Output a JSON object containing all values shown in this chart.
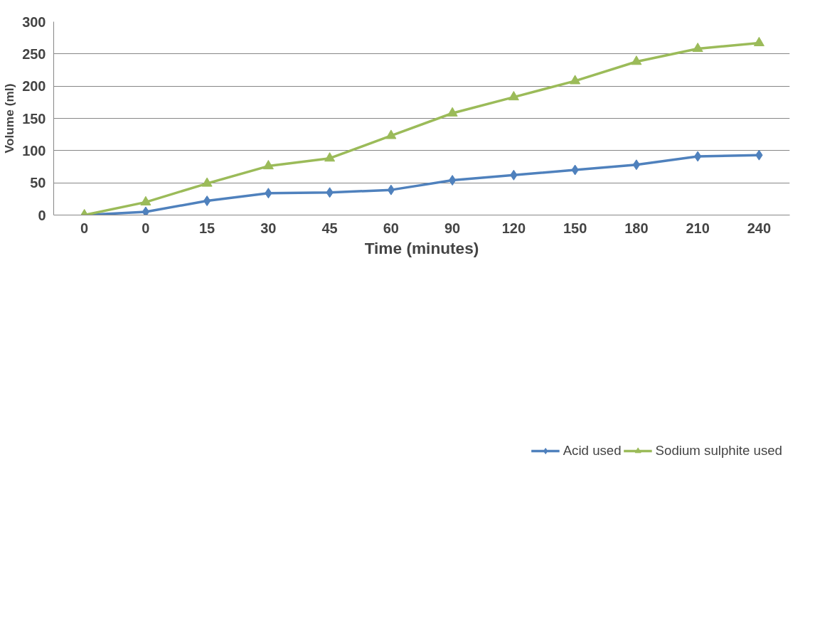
{
  "chart_data": {
    "type": "line",
    "xlabel": "Time (minutes)",
    "ylabel": "Volume (ml)",
    "categories": [
      "0",
      "0",
      "15",
      "30",
      "45",
      "60",
      "90",
      "120",
      "150",
      "180",
      "210",
      "240"
    ],
    "series": [
      {
        "name": "Acid used",
        "color": "#4f81bd",
        "marker": "diamond",
        "values": [
          0,
          5,
          22,
          34,
          35,
          39,
          54,
          62,
          70,
          78,
          91,
          93
        ]
      },
      {
        "name": "Sodium sulphite used",
        "color": "#9bbb59",
        "marker": "triangle",
        "values": [
          0,
          20,
          49,
          76,
          88,
          123,
          158,
          183,
          208,
          238,
          258,
          267
        ]
      }
    ],
    "ylim": [
      0,
      300
    ],
    "yticks": [
      0,
      50,
      100,
      150,
      200,
      250,
      300
    ],
    "grid": "y",
    "legend": "bottom"
  }
}
